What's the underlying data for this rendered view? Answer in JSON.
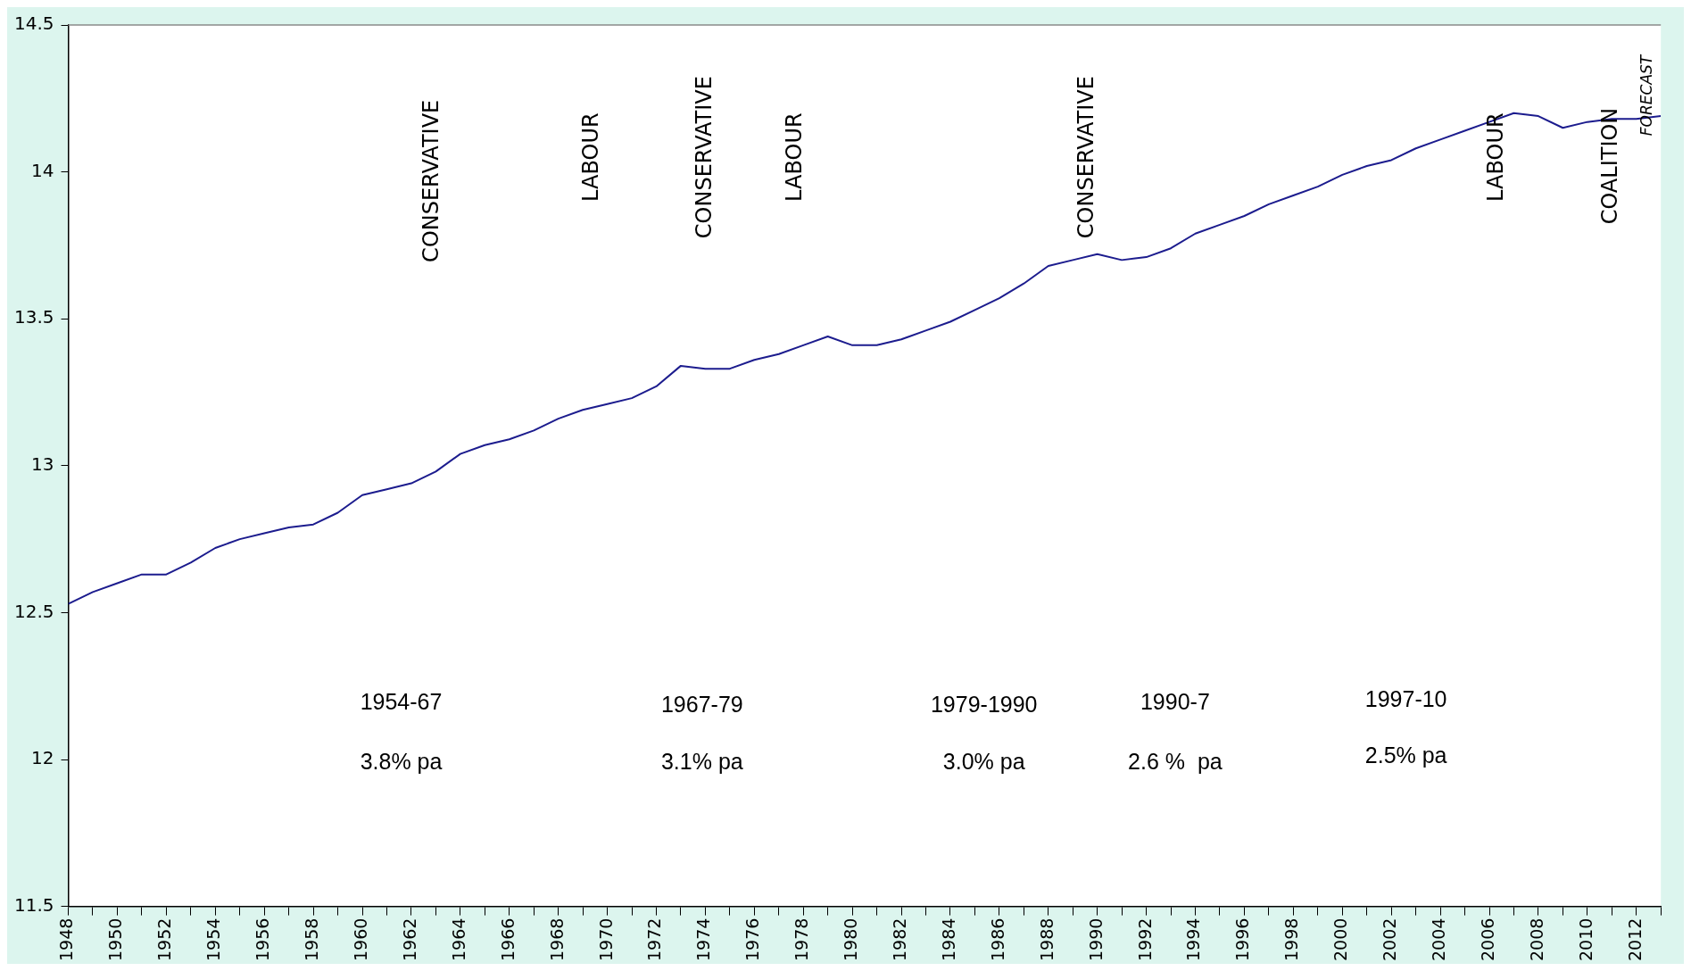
{
  "chart_data": {
    "type": "line",
    "x": [
      1948,
      1949,
      1950,
      1951,
      1952,
      1953,
      1954,
      1955,
      1956,
      1957,
      1958,
      1959,
      1960,
      1961,
      1962,
      1963,
      1964,
      1965,
      1966,
      1967,
      1968,
      1969,
      1970,
      1971,
      1972,
      1973,
      1974,
      1975,
      1976,
      1977,
      1978,
      1979,
      1980,
      1981,
      1982,
      1983,
      1984,
      1985,
      1986,
      1987,
      1988,
      1989,
      1990,
      1991,
      1992,
      1993,
      1994,
      1995,
      1996,
      1997,
      1998,
      1999,
      2000,
      2001,
      2002,
      2003,
      2004,
      2005,
      2006,
      2007,
      2008,
      2009,
      2010,
      2011,
      2012,
      2013
    ],
    "series": [
      {
        "color": "#1c1c8e",
        "values": [
          12.53,
          12.57,
          12.6,
          12.63,
          12.63,
          12.67,
          12.72,
          12.75,
          12.77,
          12.79,
          12.8,
          12.84,
          12.9,
          12.92,
          12.94,
          12.98,
          13.04,
          13.07,
          13.09,
          13.12,
          13.16,
          13.19,
          13.21,
          13.23,
          13.27,
          13.34,
          13.33,
          13.33,
          13.36,
          13.38,
          13.41,
          13.44,
          13.41,
          13.41,
          13.43,
          13.46,
          13.49,
          13.53,
          13.57,
          13.62,
          13.68,
          13.7,
          13.72,
          13.7,
          13.71,
          13.74,
          13.79,
          13.82,
          13.85,
          13.89,
          13.92,
          13.95,
          13.99,
          14.02,
          14.04,
          14.08,
          14.11,
          14.14,
          14.17,
          14.2,
          14.19,
          14.15,
          14.17,
          14.18,
          14.18,
          14.19
        ]
      }
    ],
    "xlim": [
      1948,
      2013
    ],
    "xticks": [
      1948,
      {
        "value": 1949,
        "label": null
      },
      1950,
      {
        "value": 1951,
        "label": null
      },
      1952,
      {
        "value": 1953,
        "label": null
      },
      1954,
      {
        "value": 1955,
        "label": null
      },
      1956,
      {
        "value": 1957,
        "label": null
      },
      1958,
      {
        "value": 1959,
        "label": null
      },
      1960,
      {
        "value": 1961,
        "label": null
      },
      1962,
      {
        "value": 1963,
        "label": null
      },
      1964,
      {
        "value": 1965,
        "label": null
      },
      1966,
      {
        "value": 1967,
        "label": null
      },
      1968,
      {
        "value": 1969,
        "label": null
      },
      1970,
      {
        "value": 1971,
        "label": null
      },
      1972,
      {
        "value": 1973,
        "label": null
      },
      1974,
      {
        "value": 1975,
        "label": null
      },
      1976,
      {
        "value": 1977,
        "label": null
      },
      1978,
      {
        "value": 1979,
        "label": null
      },
      1980,
      {
        "value": 1981,
        "label": null
      },
      1982,
      {
        "value": 1983,
        "label": null
      },
      1984,
      {
        "value": 1985,
        "label": null
      },
      1986,
      {
        "value": 1987,
        "label": null
      },
      1988,
      {
        "value": 1989,
        "label": null
      },
      1990,
      {
        "value": 1991,
        "label": null
      },
      1992,
      {
        "value": 1993,
        "label": null
      },
      1994,
      {
        "value": 1995,
        "label": null
      },
      1996,
      {
        "value": 1997,
        "label": null
      },
      1998,
      {
        "value": 1999,
        "label": null
      },
      2000,
      {
        "value": 2001,
        "label": null
      },
      2002,
      {
        "value": 2003,
        "label": null
      },
      2004,
      {
        "value": 2005,
        "label": null
      },
      2006,
      {
        "value": 2007,
        "label": null
      },
      2008,
      {
        "value": 2009,
        "label": null
      },
      2010,
      {
        "value": 2011,
        "label": null
      },
      2012,
      {
        "value": 2013,
        "label": null
      }
    ],
    "ylim": [
      11.5,
      14.5
    ],
    "yticks": [
      11.5,
      12,
      12.5,
      13,
      13.5,
      14,
      14.5
    ],
    "grid": false,
    "legend": false,
    "marker": "none",
    "line_style": "solid",
    "annotations": [
      "CONSERVATIVE",
      "LABOUR",
      "CONSERVATIVE",
      "LABOUR",
      "CONSERVATIVE",
      "LABOUR",
      "COALITION",
      "FORECAST",
      "1954-67",
      "3.8% pa",
      "1967-79",
      "3.1% pa",
      "1979-1990",
      "3.0% pa",
      "1990-7",
      "2.6 %  pa",
      "1997-10",
      "2.5% pa"
    ]
  }
}
